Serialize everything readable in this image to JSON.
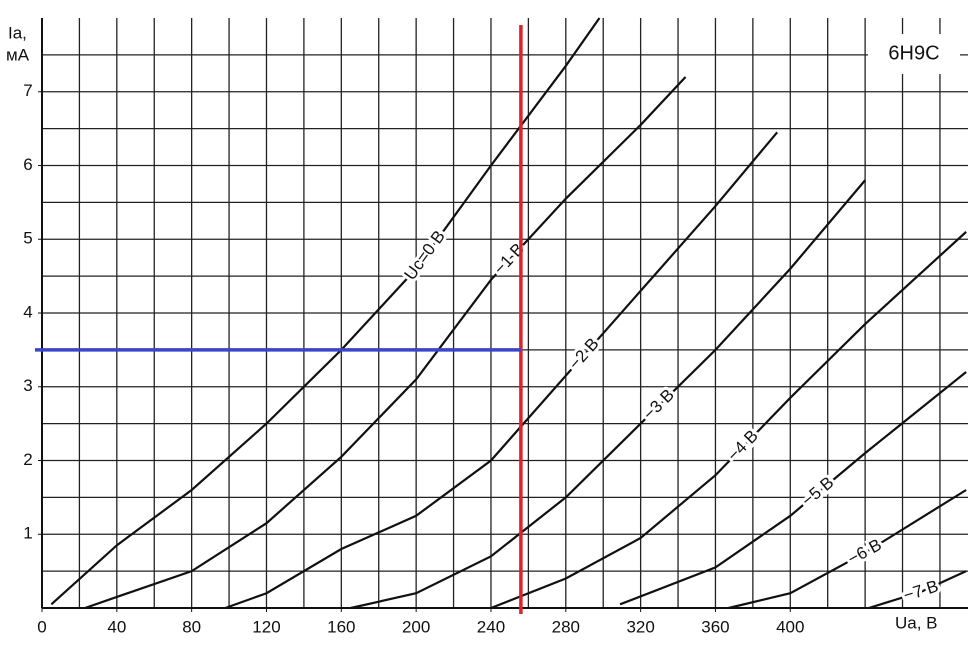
{
  "chart_data": {
    "type": "line",
    "title": "6Н9С",
    "xlabel": "Ua, В",
    "ylabel": [
      "Ia,",
      "мА"
    ],
    "xlim": [
      0,
      495
    ],
    "ylim": [
      0,
      8
    ],
    "xticks": [
      0,
      40,
      80,
      120,
      160,
      200,
      240,
      280,
      320,
      360,
      400
    ],
    "yticks": [
      1,
      2,
      3,
      4,
      5,
      6,
      7
    ],
    "xgrid": [
      20,
      40,
      60,
      80,
      100,
      120,
      140,
      160,
      180,
      200,
      220,
      240,
      260,
      280,
      300,
      320,
      340,
      360,
      380,
      400,
      420,
      440,
      460,
      480
    ],
    "ygrid": [
      0.5,
      1,
      1.5,
      2,
      2.5,
      3,
      3.5,
      4,
      4.5,
      5,
      5.5,
      6,
      6.5,
      7,
      7.5
    ],
    "grid": true,
    "series": [
      {
        "name": "Uc=0 B",
        "color": "#111111",
        "x": [
          5,
          40,
          80,
          120,
          160,
          200,
          240,
          280,
          298
        ],
        "values": [
          0.05,
          0.85,
          1.6,
          2.5,
          3.5,
          4.6,
          6.0,
          7.35,
          8.0
        ]
      },
      {
        "name": "−1 B",
        "color": "#111111",
        "x": [
          23,
          40,
          80,
          120,
          160,
          200,
          240,
          280,
          320,
          344
        ],
        "values": [
          0,
          0.15,
          0.5,
          1.15,
          2.05,
          3.1,
          4.45,
          5.55,
          6.55,
          7.2
        ]
      },
      {
        "name": "−2 B",
        "color": "#111111",
        "x": [
          98,
          120,
          160,
          200,
          240,
          280,
          320,
          360,
          393
        ],
        "values": [
          0,
          0.2,
          0.8,
          1.25,
          2.0,
          3.15,
          4.3,
          5.45,
          6.45
        ]
      },
      {
        "name": "−3 B",
        "color": "#111111",
        "x": [
          165,
          200,
          240,
          280,
          320,
          360,
          400,
          440
        ],
        "values": [
          0,
          0.2,
          0.7,
          1.5,
          2.5,
          3.5,
          4.6,
          5.8
        ]
      },
      {
        "name": "−4 B",
        "color": "#111111",
        "x": [
          240,
          280,
          320,
          360,
          400,
          440,
          494
        ],
        "values": [
          0,
          0.4,
          0.95,
          1.8,
          2.85,
          3.85,
          5.1
        ]
      },
      {
        "name": "−5 B",
        "color": "#111111",
        "x": [
          309,
          360,
          400,
          440,
          494
        ],
        "values": [
          0.05,
          0.55,
          1.25,
          2.1,
          3.2
        ]
      },
      {
        "name": "−6 B",
        "color": "#111111",
        "x": [
          367,
          400,
          440,
          494
        ],
        "values": [
          0,
          0.2,
          0.75,
          1.6
        ]
      },
      {
        "name": "−7 B",
        "color": "#111111",
        "x": [
          442,
          470,
          494
        ],
        "values": [
          0,
          0.22,
          0.5
        ]
      }
    ],
    "reference_lines": [
      {
        "axis": "x",
        "value": 256,
        "color": "#e0202a"
      },
      {
        "axis": "y",
        "value": 3.5,
        "color": "#3a45c8",
        "to": 256
      }
    ]
  }
}
